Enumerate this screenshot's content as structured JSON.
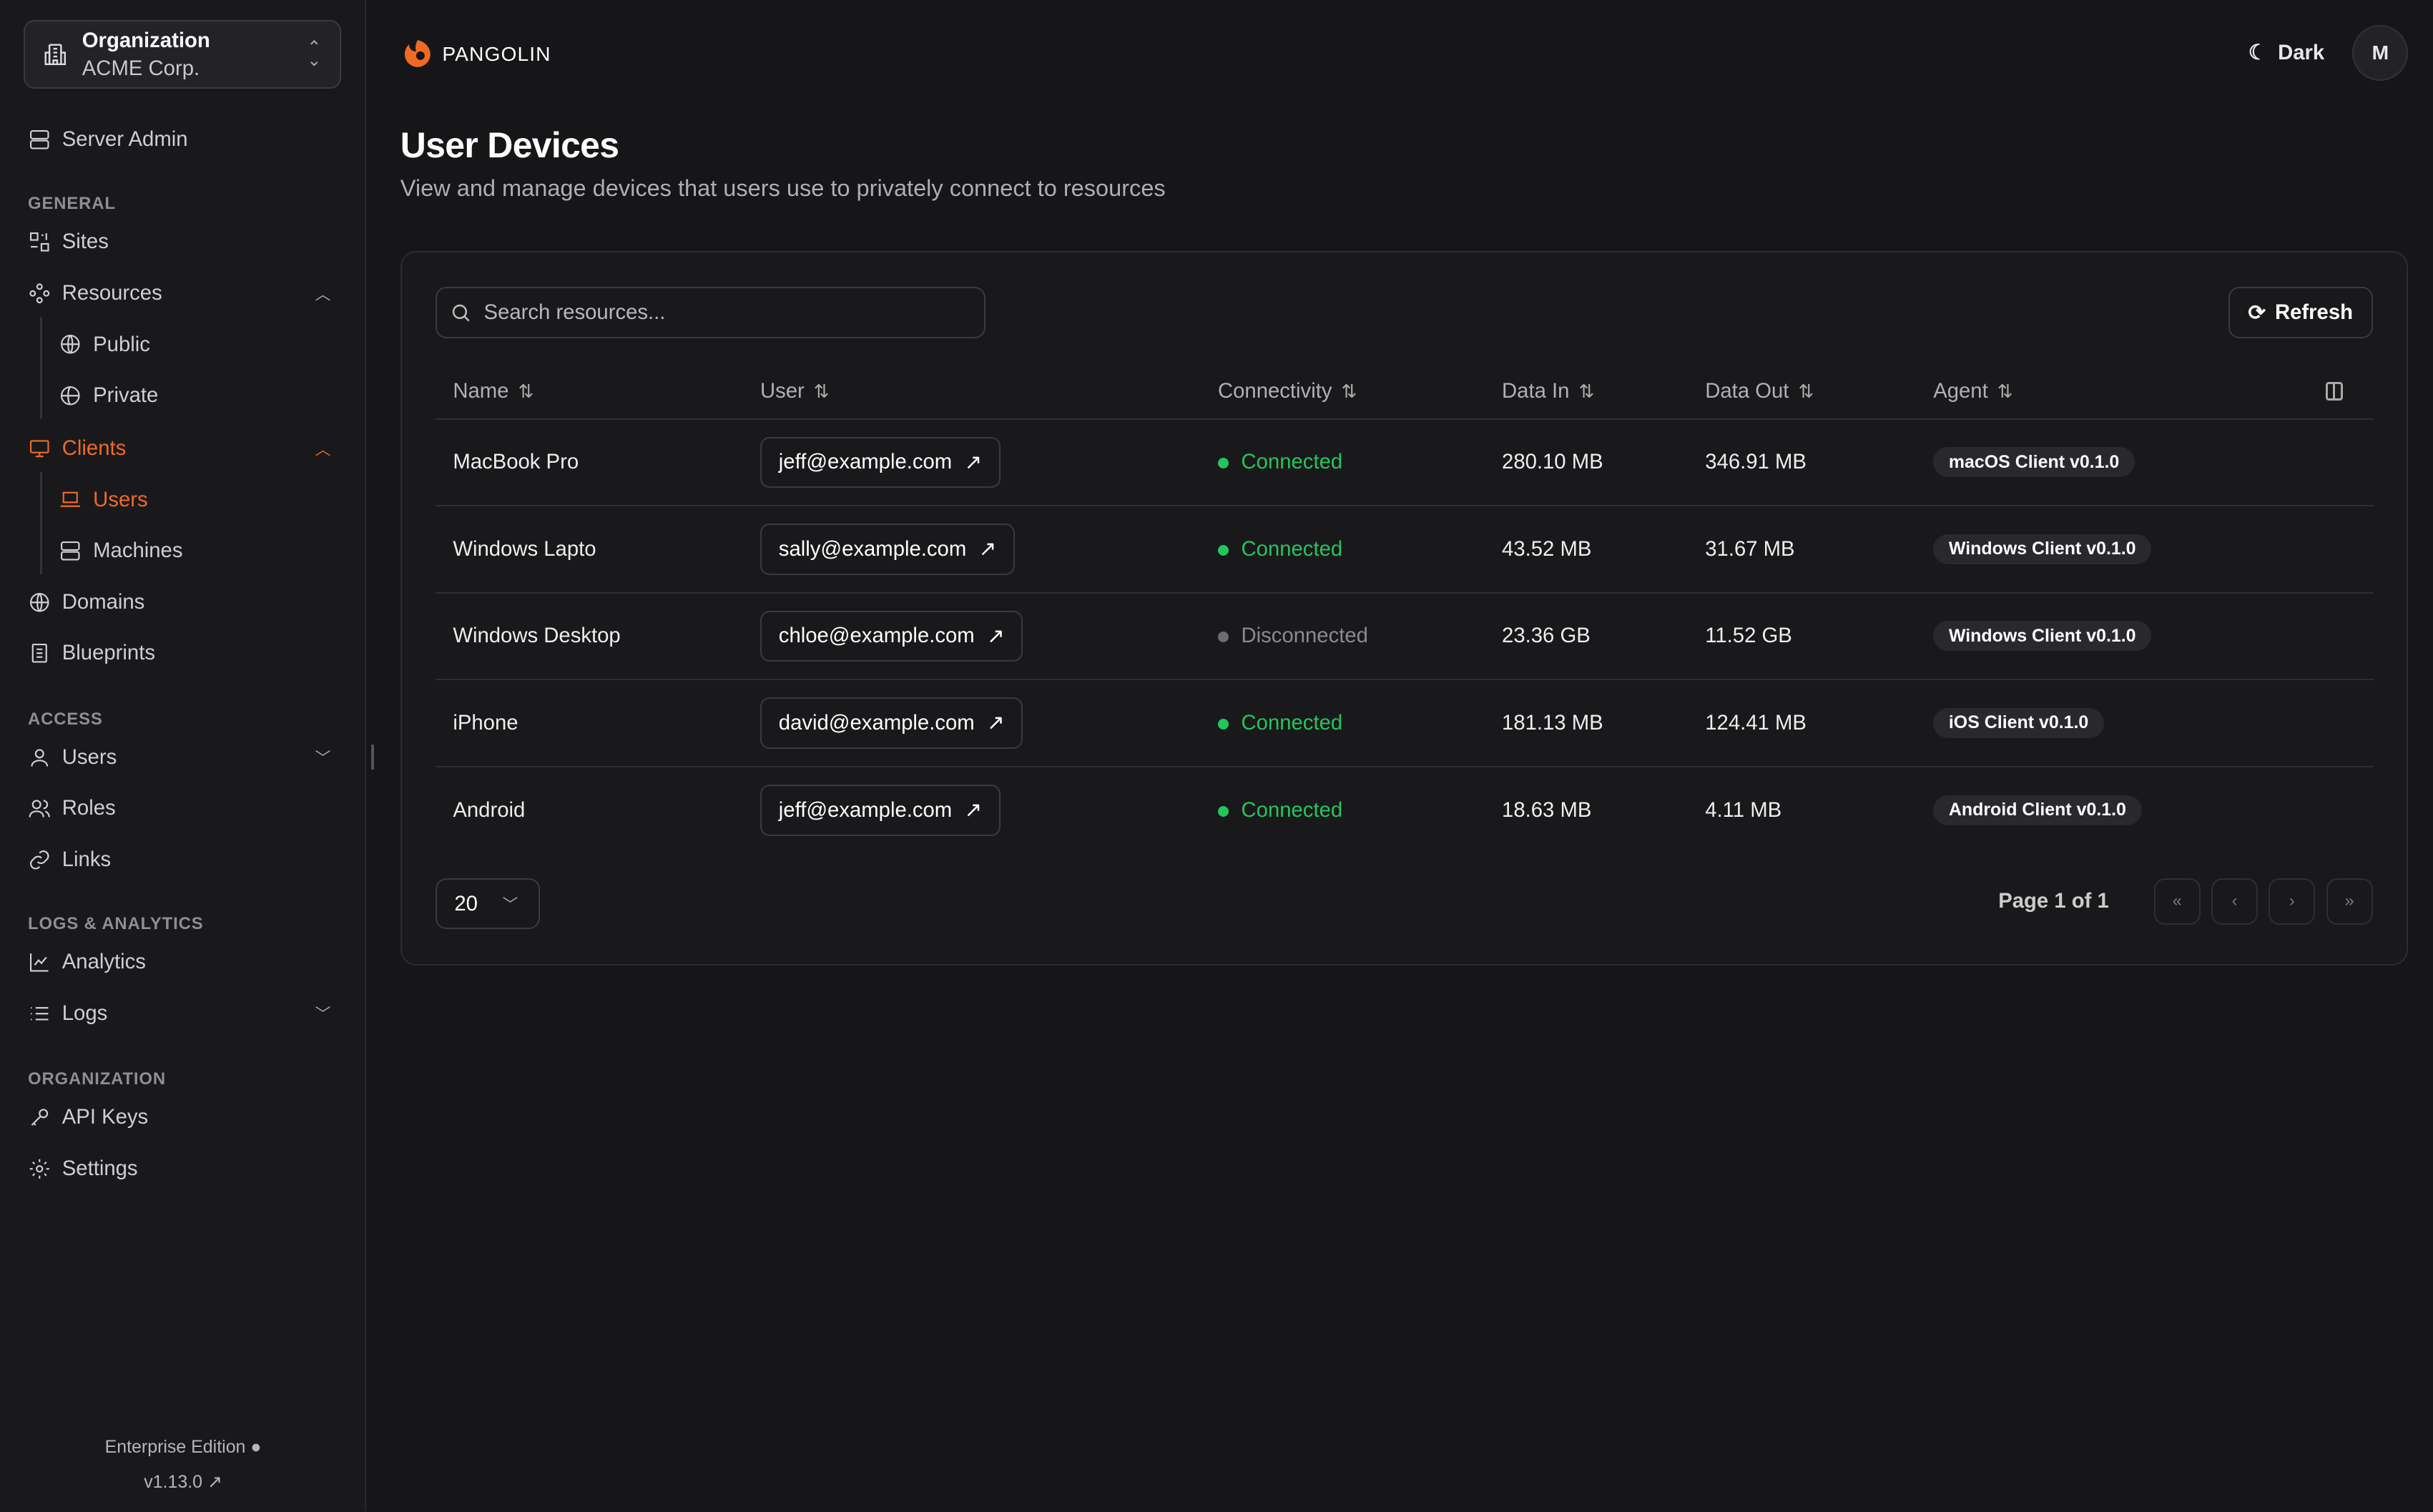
{
  "org": {
    "label": "Organization",
    "name": "ACME Corp."
  },
  "sidebar": {
    "server_admin": "Server Admin",
    "sections": {
      "general": "GENERAL",
      "access": "ACCESS",
      "logs": "LOGS & ANALYTICS",
      "organization": "ORGANIZATION"
    },
    "items": {
      "sites": "Sites",
      "resources": "Resources",
      "public": "Public",
      "private": "Private",
      "clients": "Clients",
      "users": "Users",
      "machines": "Machines",
      "domains": "Domains",
      "blueprints": "Blueprints",
      "access_users": "Users",
      "roles": "Roles",
      "links": "Links",
      "analytics": "Analytics",
      "logs": "Logs",
      "api_keys": "API Keys",
      "settings": "Settings"
    },
    "edition": "Enterprise Edition",
    "version": "v1.13.0"
  },
  "header": {
    "brand": "PANGOLIN",
    "theme": "Dark",
    "avatar": "M"
  },
  "page": {
    "title": "User Devices",
    "subtitle": "View and manage devices that users use to privately connect to resources"
  },
  "toolbar": {
    "search_placeholder": "Search resources...",
    "refresh": "Refresh"
  },
  "table": {
    "columns": [
      "Name",
      "User",
      "Connectivity",
      "Data In",
      "Data Out",
      "Agent"
    ],
    "rows": [
      {
        "name": "MacBook Pro",
        "user": "jeff@example.com",
        "status": "Connected",
        "in": "280.10 MB",
        "out": "346.91 MB",
        "agent": "macOS Client v0.1.0"
      },
      {
        "name": "Windows Lapto",
        "user": "sally@example.com",
        "status": "Connected",
        "in": "43.52 MB",
        "out": "31.67 MB",
        "agent": "Windows Client v0.1.0"
      },
      {
        "name": "Windows Desktop",
        "user": "chloe@example.com",
        "status": "Disconnected",
        "in": "23.36 GB",
        "out": "11.52 GB",
        "agent": "Windows Client v0.1.0"
      },
      {
        "name": "iPhone",
        "user": "david@example.com",
        "status": "Connected",
        "in": "181.13 MB",
        "out": "124.41 MB",
        "agent": "iOS Client v0.1.0"
      },
      {
        "name": "Android",
        "user": "jeff@example.com",
        "status": "Connected",
        "in": "18.63 MB",
        "out": "4.11 MB",
        "agent": "Android Client v0.1.0"
      }
    ]
  },
  "pagination": {
    "page_size": "20",
    "page_text": "Page 1 of 1"
  },
  "colors": {
    "accent": "#f06a23",
    "connected": "#22c55e",
    "disconnected": "#6b6b70"
  }
}
